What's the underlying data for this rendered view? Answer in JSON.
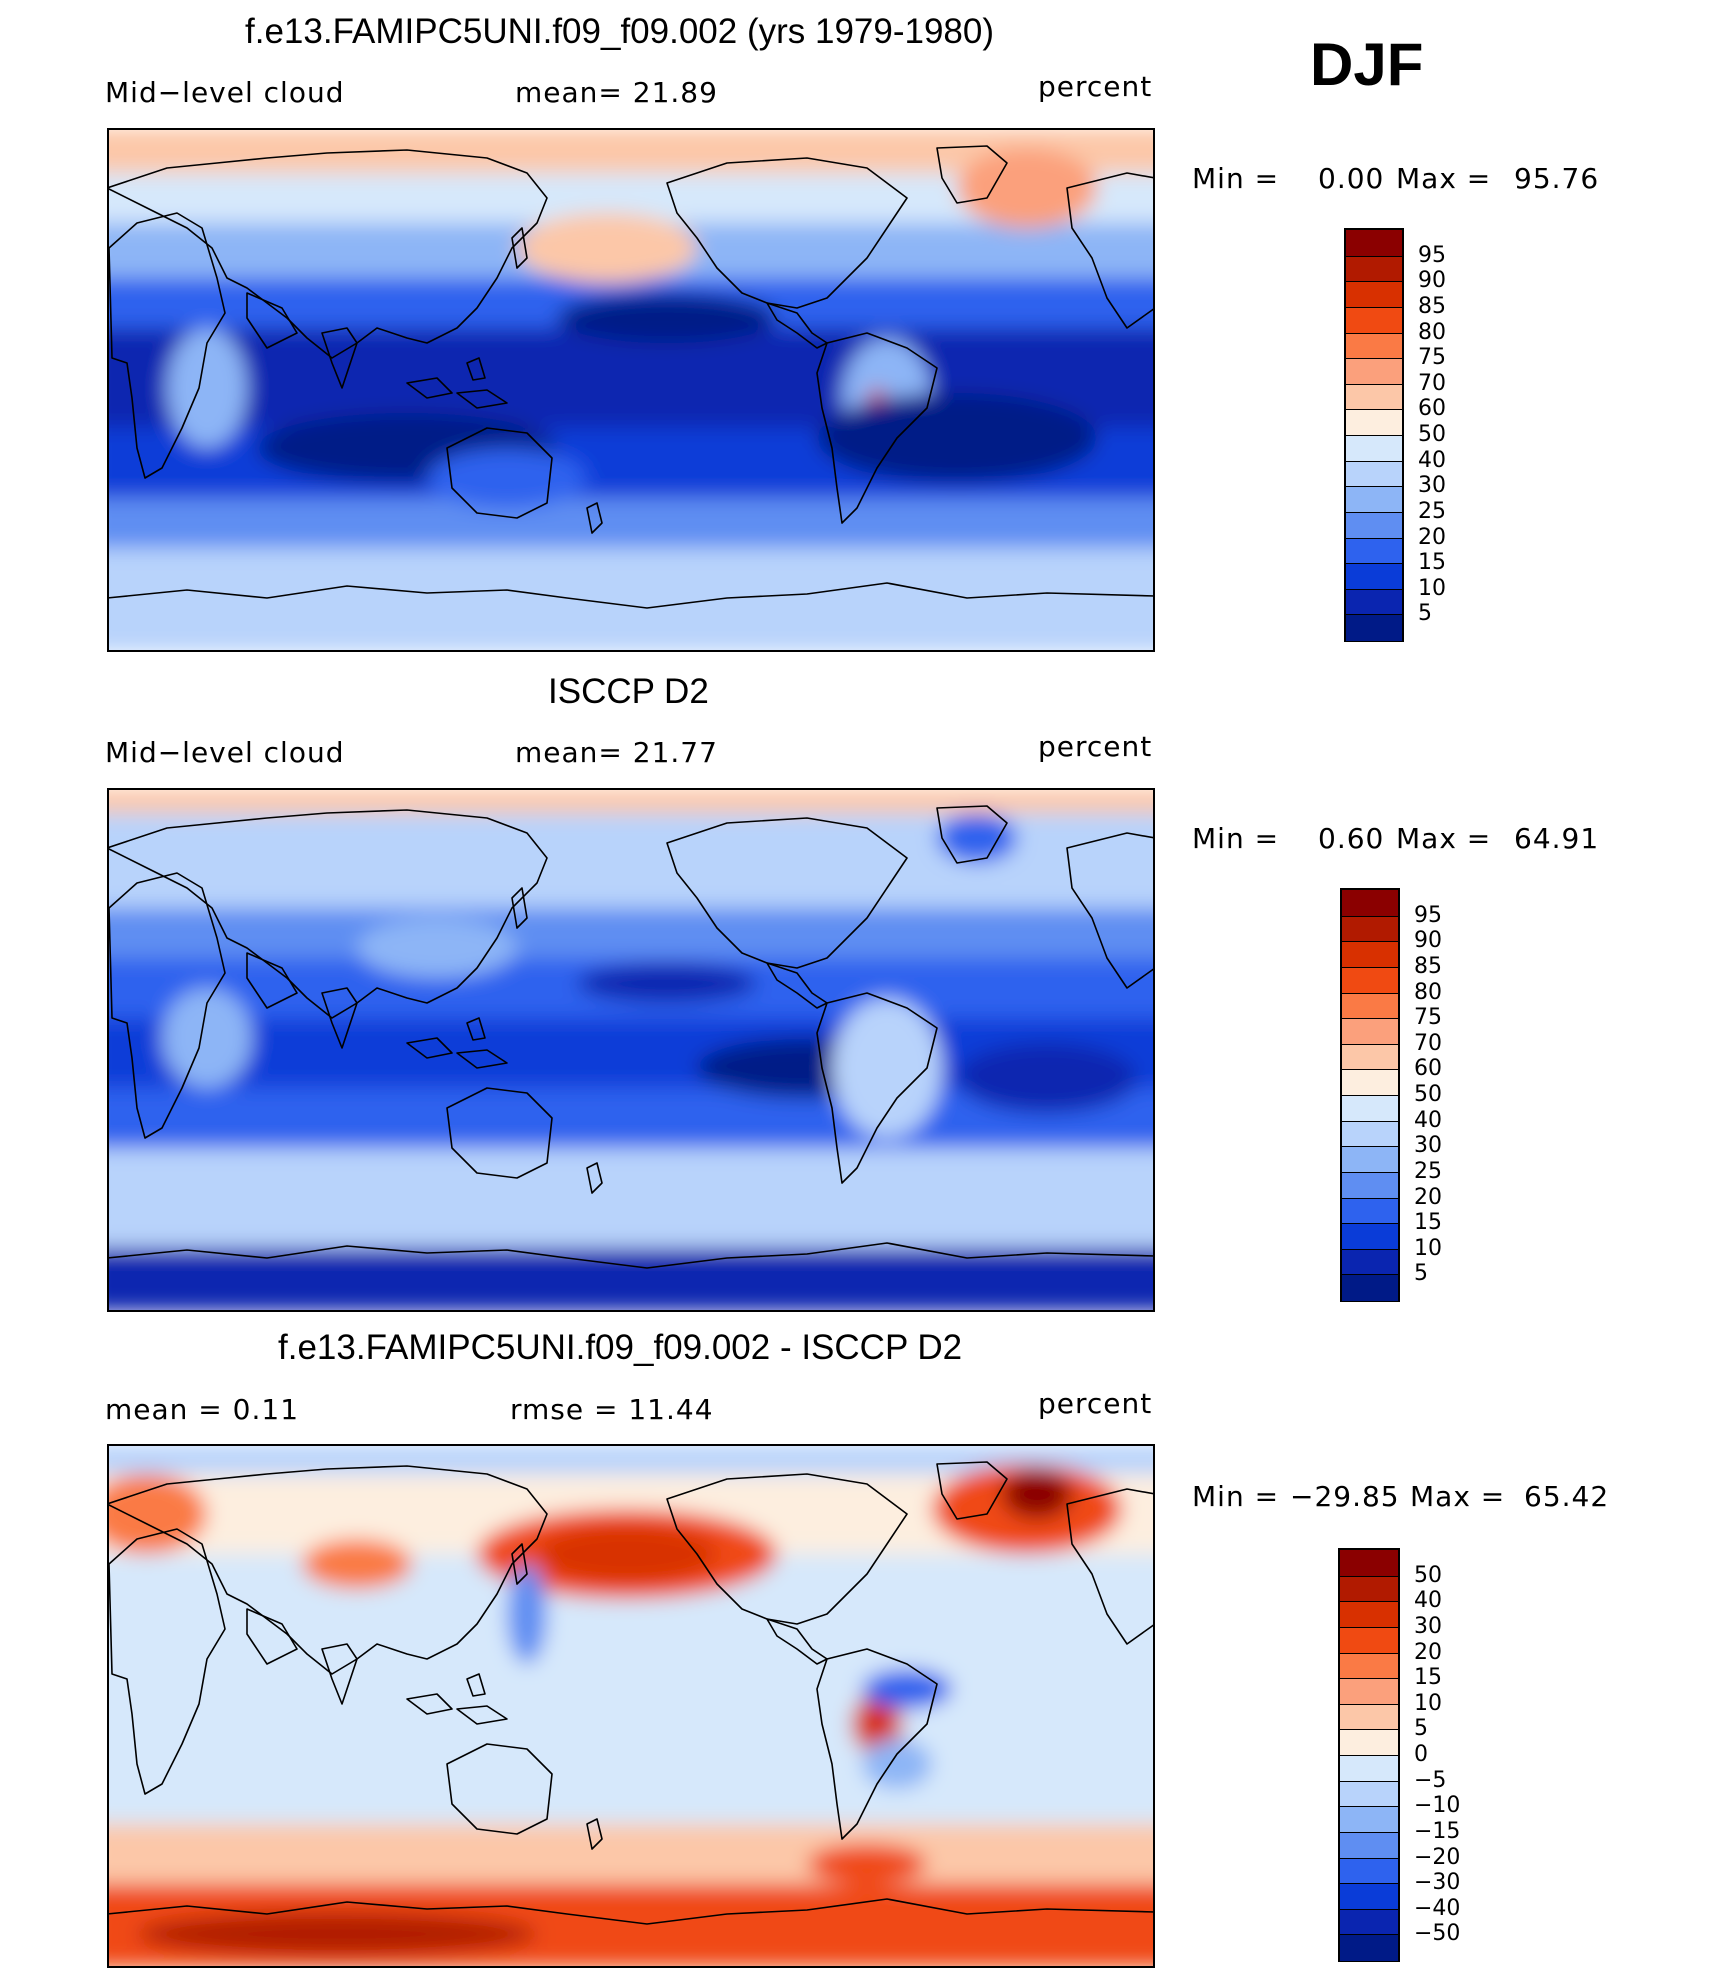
{
  "season": "DJF",
  "panels": [
    {
      "id": "model",
      "title": "f.e13.FAMIPC5UNI.f09_f09.002 (yrs 1979-1980)",
      "left_label": "Mid−level cloud",
      "center_label": "mean=   21.89",
      "units": "percent",
      "min_label": "Min  =",
      "min_value": "0.00",
      "max_label": "Max  =",
      "max_value": "95.76",
      "colorbar": {
        "levels": [
          "95",
          "90",
          "85",
          "80",
          "75",
          "70",
          "60",
          "50",
          "40",
          "30",
          "25",
          "20",
          "15",
          "10",
          "5"
        ],
        "colors": [
          "#8b0000",
          "#b11a00",
          "#d83000",
          "#f04a12",
          "#fa7a45",
          "#fba07c",
          "#fcc7a8",
          "#fdeedf",
          "#d6e8fb",
          "#b8d3fb",
          "#8db5f6",
          "#5f8ef2",
          "#2e62ee",
          "#0a3cd8",
          "#0a25b0",
          "#001a87"
        ]
      },
      "map_palette": "sequential"
    },
    {
      "id": "obs",
      "title": "ISCCP D2",
      "left_label": "Mid−level cloud",
      "center_label": "mean=   21.77",
      "units": "percent",
      "min_label": "Min  =",
      "min_value": "0.60",
      "max_label": "Max  =",
      "max_value": "64.91",
      "colorbar": {
        "levels": [
          "95",
          "90",
          "85",
          "80",
          "75",
          "70",
          "60",
          "50",
          "40",
          "30",
          "25",
          "20",
          "15",
          "10",
          "5"
        ],
        "colors": [
          "#8b0000",
          "#b11a00",
          "#d83000",
          "#f04a12",
          "#fa7a45",
          "#fba07c",
          "#fcc7a8",
          "#fdeedf",
          "#d6e8fb",
          "#b8d3fb",
          "#8db5f6",
          "#5f8ef2",
          "#2e62ee",
          "#0a3cd8",
          "#0a25b0",
          "#001a87"
        ]
      },
      "map_palette": "sequential"
    },
    {
      "id": "diff",
      "title": "f.e13.FAMIPC5UNI.f09_f09.002 - ISCCP D2",
      "left_label": "mean =    0.11",
      "center_label": "rmse  =    11.44",
      "units": "percent",
      "min_label": "Min  =",
      "min_value": "−29.85",
      "max_label": "Max  =",
      "max_value": "65.42",
      "colorbar": {
        "levels": [
          "50",
          "40",
          "30",
          "20",
          "15",
          "10",
          "5",
          "0",
          "−5",
          "−10",
          "−15",
          "−20",
          "−30",
          "−40",
          "−50"
        ],
        "colors": [
          "#8b0000",
          "#b11a00",
          "#d83000",
          "#f04a12",
          "#fa7a45",
          "#fba07c",
          "#fcc7a8",
          "#fdeedf",
          "#d6e8fb",
          "#b8d3fb",
          "#8db5f6",
          "#5f8ef2",
          "#2e62ee",
          "#0a3cd8",
          "#0a25b0",
          "#001a87"
        ]
      },
      "map_palette": "diverging"
    }
  ]
}
